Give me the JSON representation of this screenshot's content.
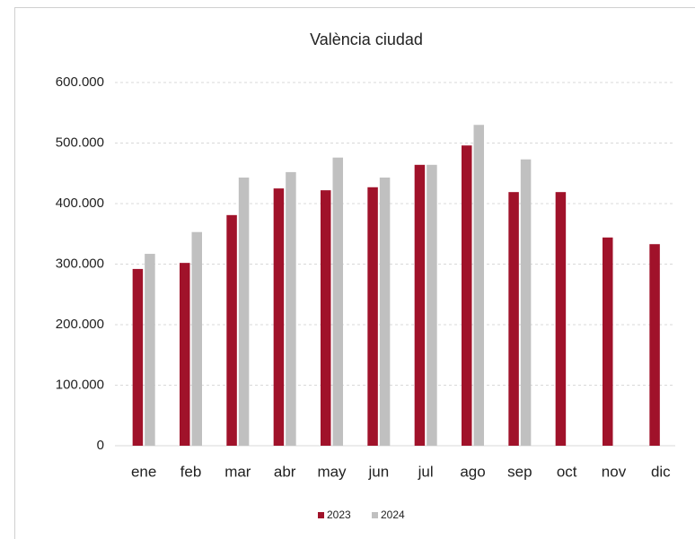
{
  "chart_data": {
    "type": "bar",
    "title": "València ciudad",
    "categories": [
      "ene",
      "feb",
      "mar",
      "abr",
      "may",
      "jun",
      "jul",
      "ago",
      "sep",
      "oct",
      "nov",
      "dic"
    ],
    "series": [
      {
        "name": "2023",
        "color": "#a0122a",
        "values": [
          292000,
          302000,
          381000,
          425000,
          422000,
          427000,
          464000,
          496000,
          419000,
          419000,
          344000,
          333000
        ]
      },
      {
        "name": "2024",
        "color": "#c0c0c0",
        "values": [
          317000,
          353000,
          443000,
          452000,
          476000,
          443000,
          464000,
          530000,
          473000,
          null,
          null,
          null
        ]
      }
    ],
    "ylim": [
      0,
      600000
    ],
    "yticks": [
      0,
      {
        "value": 100000,
        "label": "100.000"
      },
      {
        "value": 200000,
        "label": "200.000"
      },
      {
        "value": 300000,
        "label": "300.000"
      },
      {
        "value": 400000,
        "label": "400.000"
      },
      {
        "value": 500000,
        "label": "500.000"
      },
      {
        "value": 600000,
        "label": "600.000"
      }
    ],
    "grid": true,
    "legend": "bottom"
  }
}
